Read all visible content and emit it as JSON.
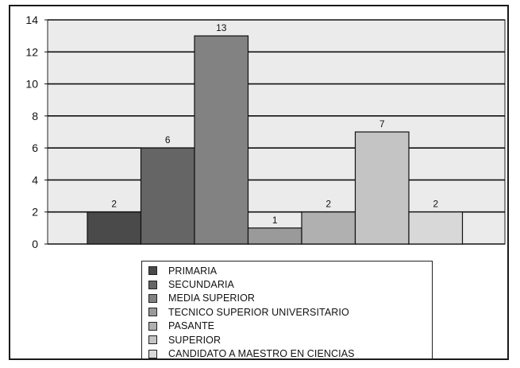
{
  "chart_data": {
    "type": "bar",
    "title": "",
    "xlabel": "",
    "ylabel": "",
    "ylim": [
      0,
      14
    ],
    "yticks": [
      0,
      2,
      4,
      6,
      8,
      10,
      12,
      14
    ],
    "grid": true,
    "legend_position": "bottom",
    "categories": [
      "PRIMARIA",
      "SECUNDARIA",
      "MEDIA SUPERIOR",
      "TECNICO SUPERIOR UNIVERSITARIO",
      "PASANTE",
      "SUPERIOR",
      "CANDIDATO A MAESTRO EN CIENCIAS"
    ],
    "values": [
      2,
      6,
      13,
      1,
      2,
      7,
      2
    ],
    "colors": [
      "#4a4a4a",
      "#656565",
      "#828282",
      "#9a9a9a",
      "#b0b0b0",
      "#c4c4c4",
      "#d8d8d8"
    ],
    "plot_background": "#ebebeb"
  }
}
